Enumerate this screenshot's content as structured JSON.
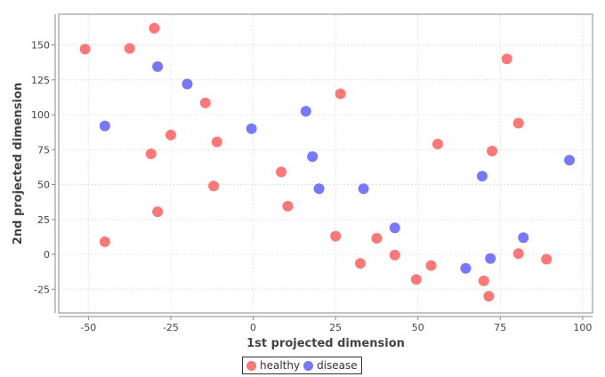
{
  "chart_data": {
    "type": "scatter",
    "title": "",
    "xlabel": "1st projected dimension",
    "ylabel": "2nd projected dimension",
    "xlim": [
      -59,
      103
    ],
    "ylim": [
      -42,
      172
    ],
    "x_ticks": [
      -50,
      -25,
      0,
      25,
      50,
      75,
      100
    ],
    "y_ticks": [
      -25,
      0,
      25,
      50,
      75,
      100,
      125,
      150
    ],
    "grid": true,
    "legend_position": "bottom",
    "series": [
      {
        "name": "healthy",
        "color": "#ff7777",
        "points": [
          [
            -51,
            147
          ],
          [
            -37.5,
            147.5
          ],
          [
            -30,
            162
          ],
          [
            -45,
            9
          ],
          [
            -31,
            72
          ],
          [
            -29,
            30.5
          ],
          [
            -25,
            85.5
          ],
          [
            -14.5,
            108.5
          ],
          [
            -11,
            80.5
          ],
          [
            -12,
            49
          ],
          [
            8.5,
            59
          ],
          [
            10.5,
            34.5
          ],
          [
            26.5,
            115
          ],
          [
            25,
            13
          ],
          [
            32.5,
            -6.5
          ],
          [
            37.5,
            11.5
          ],
          [
            43,
            -0.5
          ],
          [
            49.5,
            -18
          ],
          [
            54,
            -8
          ],
          [
            56,
            79
          ],
          [
            70,
            -19
          ],
          [
            71.5,
            -30
          ],
          [
            72.5,
            74
          ],
          [
            77,
            140
          ],
          [
            80.5,
            94
          ],
          [
            80.5,
            0.5
          ],
          [
            89,
            -3.5
          ]
        ]
      },
      {
        "name": "disease",
        "color": "#7777ff",
        "points": [
          [
            -45,
            92
          ],
          [
            -29,
            134.5
          ],
          [
            -20,
            122
          ],
          [
            -0.5,
            90
          ],
          [
            16,
            102.5
          ],
          [
            18,
            70
          ],
          [
            20,
            47
          ],
          [
            33.5,
            47
          ],
          [
            43,
            19
          ],
          [
            64.5,
            -10
          ],
          [
            69.5,
            56
          ],
          [
            72,
            -3
          ],
          [
            82,
            12
          ],
          [
            96,
            67.5
          ]
        ]
      }
    ]
  }
}
